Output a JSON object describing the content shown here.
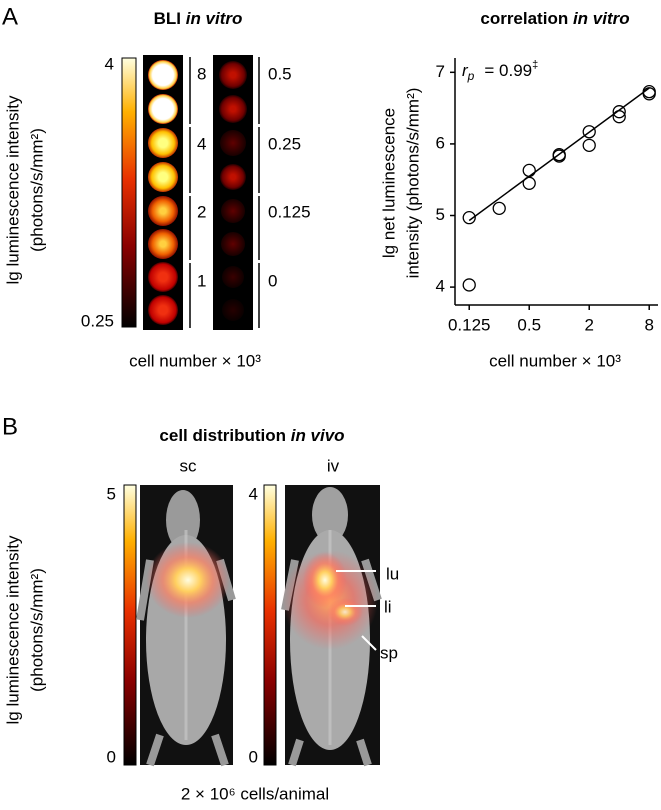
{
  "panel_a": {
    "letter": "A",
    "title": [
      "BLI",
      "in vitro"
    ],
    "y_label": [
      "lg luminescence intensity",
      "(photons/s/mm²)"
    ],
    "colorbar_labels": [
      4,
      0.25
    ],
    "dilution_labels_left": [
      8,
      4,
      2,
      1
    ],
    "dilution_labels_right": [
      0.5,
      0.25,
      0.125,
      0
    ],
    "x_label": "cell number × 10³"
  },
  "chart_data": {
    "type": "scatter",
    "title": [
      "correlation",
      "in vitro"
    ],
    "annotation": [
      "r",
      "p",
      "= 0.99",
      "‡"
    ],
    "x_label": "cell number × 10³",
    "y_label": [
      "lg net luminescence",
      "intensity (photons/s/mm²)"
    ],
    "x": [
      0.125,
      0.125,
      0.25,
      0.5,
      0.5,
      1,
      1,
      2,
      2,
      4,
      4,
      8,
      8
    ],
    "values": [
      4.03,
      4.97,
      5.1,
      5.45,
      5.63,
      5.83,
      5.85,
      5.98,
      6.17,
      6.38,
      6.45,
      6.7,
      6.73
    ],
    "color": "#000000",
    "fit_line": {
      "x": [
        0.125,
        8
      ],
      "values": [
        4.93,
        6.78
      ]
    },
    "x_scale": "log",
    "xlim": [
      0.09,
      9.8
    ],
    "ylim": [
      3.75,
      7.2
    ],
    "xticks": [
      0.125,
      0.5,
      2,
      8
    ],
    "yticks": [
      4,
      5,
      6,
      7
    ]
  },
  "panel_b": {
    "letter": "B",
    "title": [
      "cell distribution",
      "in vivo"
    ],
    "image_labels": [
      "sc",
      "iv"
    ],
    "y_label": [
      "lg luminescence intensity",
      "(photons/s/mm²)"
    ],
    "colorbar_sc_labels": [
      5,
      0
    ],
    "colorbar_iv_labels": [
      4,
      0
    ],
    "organ_labels": [
      "lu",
      "li",
      "sp"
    ],
    "caption": "2 × 10⁶ cells/animal"
  }
}
